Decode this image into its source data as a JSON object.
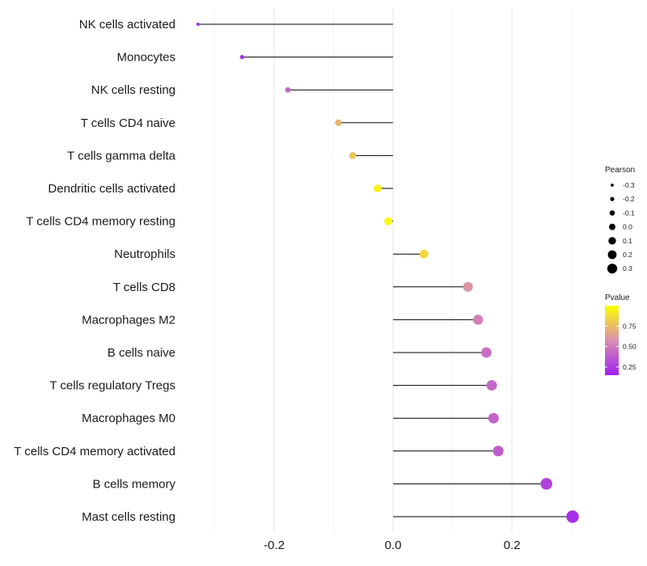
{
  "chart_data": {
    "type": "lollipop",
    "categories": [
      "NK cells activated",
      "Monocytes",
      "NK cells resting",
      "T cells CD4 naive",
      "T cells gamma delta",
      "Dendritic cells activated",
      "T cells CD4 memory resting",
      "Neutrophils",
      "T cells CD8",
      "Macrophages M2",
      "B cells naive",
      "T cells regulatory  Tregs ",
      "Macrophages M0",
      "T cells CD4 memory activated",
      "B cells memory",
      "Mast cells resting"
    ],
    "values": [
      -0.328,
      -0.254,
      -0.177,
      -0.092,
      -0.068,
      -0.026,
      -0.008,
      0.052,
      0.126,
      0.143,
      0.157,
      0.166,
      0.169,
      0.177,
      0.258,
      0.302
    ],
    "pvalues": [
      0.2,
      0.22,
      0.42,
      0.72,
      0.78,
      0.95,
      0.99,
      0.85,
      0.6,
      0.52,
      0.45,
      0.42,
      0.4,
      0.38,
      0.28,
      0.2
    ],
    "x_ticks": [
      -0.2,
      0.0,
      0.2
    ],
    "x_tick_labels": [
      "-0.2",
      "0.0",
      "0.2"
    ],
    "xlim": [
      -0.34,
      0.315
    ],
    "grid": true,
    "xlabel": "",
    "ylabel": "",
    "size_legend": {
      "title": "Pearson",
      "values": [
        -0.3,
        -0.2,
        -0.1,
        0.0,
        0.1,
        0.2,
        0.3
      ],
      "labels": [
        "-0.3",
        "-0.2",
        "-0.1",
        "0.0",
        "0.1",
        "0.2",
        "0.3"
      ]
    },
    "color_legend": {
      "title": "Pvalue",
      "ticks": [
        0.75,
        0.5,
        0.25
      ],
      "tick_labels": [
        "0.75",
        "0.50",
        "0.25"
      ],
      "range": [
        0.15,
        1.0
      ],
      "low_color": "#a020f0",
      "mid_color": "#d98fb0",
      "high_color": "#ffff00"
    }
  }
}
